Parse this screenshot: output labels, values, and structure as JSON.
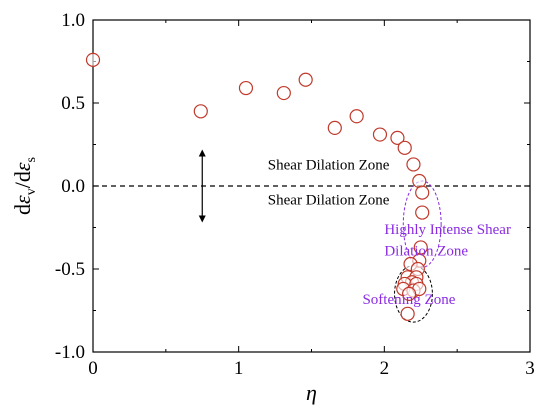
{
  "chart_data": {
    "type": "scatter",
    "xlabel": "η",
    "ylabel": "dεv/dεs",
    "ylabel_parts": {
      "base": "d",
      "eps1": "ε",
      "sub1": "v",
      "slash": "/d",
      "eps2": "ε",
      "sub2": "s"
    },
    "xlim": [
      0,
      3
    ],
    "ylim": [
      -1.0,
      1.0
    ],
    "x_ticks": [
      "0",
      "1",
      "2",
      "3"
    ],
    "y_ticks": [
      "1.0",
      "0.5",
      "0.0",
      "-0.5",
      "-1.0"
    ],
    "grid": false,
    "marker_color": "#c0392b",
    "reference_line_y": 0.0,
    "points": [
      {
        "x": 0.0,
        "y": 0.76
      },
      {
        "x": 0.74,
        "y": 0.45
      },
      {
        "x": 1.05,
        "y": 0.59
      },
      {
        "x": 1.31,
        "y": 0.56
      },
      {
        "x": 1.46,
        "y": 0.64
      },
      {
        "x": 1.66,
        "y": 0.35
      },
      {
        "x": 1.81,
        "y": 0.42
      },
      {
        "x": 1.97,
        "y": 0.31
      },
      {
        "x": 2.09,
        "y": 0.29
      },
      {
        "x": 2.14,
        "y": 0.23
      },
      {
        "x": 2.2,
        "y": 0.13
      },
      {
        "x": 2.24,
        "y": 0.03
      },
      {
        "x": 2.26,
        "y": -0.04
      },
      {
        "x": 2.26,
        "y": -0.16
      },
      {
        "x": 2.25,
        "y": -0.37
      },
      {
        "x": 2.24,
        "y": -0.45
      },
      {
        "x": 2.18,
        "y": -0.47
      },
      {
        "x": 2.23,
        "y": -0.5
      },
      {
        "x": 2.16,
        "y": -0.55
      },
      {
        "x": 2.22,
        "y": -0.55
      },
      {
        "x": 2.19,
        "y": -0.58
      },
      {
        "x": 2.14,
        "y": -0.59
      },
      {
        "x": 2.22,
        "y": -0.59
      },
      {
        "x": 2.13,
        "y": -0.62
      },
      {
        "x": 2.2,
        "y": -0.63
      },
      {
        "x": 2.24,
        "y": -0.62
      },
      {
        "x": 2.17,
        "y": -0.65
      },
      {
        "x": 2.16,
        "y": -0.77
      }
    ],
    "annotations": [
      {
        "text": "Shear Dilation Zone",
        "x": 1.2,
        "y": 0.1,
        "color": "#000000"
      },
      {
        "text": "Shear Dilation Zone",
        "x": 1.2,
        "y": -0.11,
        "color": "#000000"
      },
      {
        "text": "Highly Intense Shear",
        "x": 2.0,
        "y": -0.29,
        "color": "#8a2be2"
      },
      {
        "text": "Dilation Zone",
        "x": 2.0,
        "y": -0.42,
        "color": "#8a2be2"
      },
      {
        "text": "Softening Zone",
        "x": 1.85,
        "y": -0.71,
        "color": "#8a2be2"
      }
    ],
    "arrow": {
      "x": 0.75,
      "y_from": 0.0,
      "y_up_to": 0.22,
      "y_down_to": -0.22
    },
    "ellipses": [
      {
        "label": "highly-intense-zone",
        "cx": 2.26,
        "cy": -0.23,
        "rx": 0.13,
        "ry": 0.26,
        "color": "#8a2be2"
      },
      {
        "label": "softening-zone",
        "cx": 2.2,
        "cy": -0.65,
        "rx": 0.13,
        "ry": 0.17,
        "color": "#000000"
      }
    ]
  }
}
